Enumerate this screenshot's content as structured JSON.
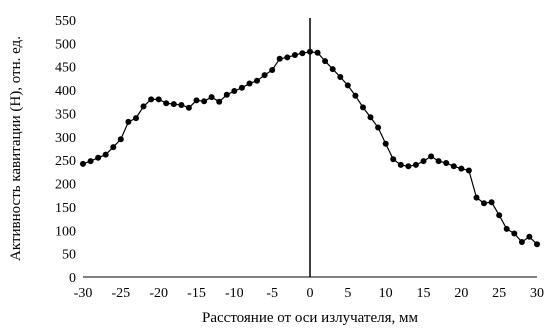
{
  "chart_data": {
    "type": "line",
    "title": "",
    "xlabel": "Расстояние от оси излучателя, мм",
    "ylabel": "Активность кавитации (H), отн. ед.",
    "xlim": [
      -30,
      30
    ],
    "ylim": [
      0,
      550
    ],
    "xticks": [
      "-30",
      "-25",
      "-20",
      "-15",
      "-10",
      "-5",
      "0",
      "5",
      "10",
      "15",
      "20",
      "25",
      "30"
    ],
    "yticks": [
      "0",
      "50",
      "100",
      "150",
      "200",
      "250",
      "300",
      "350",
      "400",
      "450",
      "500",
      "550"
    ],
    "grid": false,
    "legend": false,
    "reference_line_x": 0,
    "series": [
      {
        "color": "#000000",
        "marker": "circle",
        "x": [
          -30,
          -29,
          -28,
          -27,
          -26,
          -25,
          -24,
          -23,
          -22,
          -21,
          -20,
          -19,
          -18,
          -17,
          -16,
          -15,
          -14,
          -13,
          -12,
          -11,
          -10,
          -9,
          -8,
          -7,
          -6,
          -5,
          -4,
          -3,
          -2,
          -1,
          0,
          1,
          2,
          3,
          4,
          5,
          6,
          7,
          8,
          9,
          10,
          11,
          12,
          13,
          14,
          15,
          16,
          17,
          18,
          19,
          20,
          21,
          22,
          23,
          24,
          25,
          26,
          27,
          28,
          29,
          30
        ],
        "y": [
          242,
          248,
          255,
          262,
          278,
          295,
          332,
          340,
          365,
          380,
          380,
          372,
          370,
          368,
          362,
          378,
          376,
          385,
          375,
          390,
          398,
          405,
          414,
          420,
          432,
          443,
          467,
          470,
          475,
          479,
          482,
          480,
          462,
          445,
          428,
          410,
          388,
          363,
          342,
          320,
          285,
          252,
          240,
          237,
          240,
          248,
          258,
          248,
          244,
          237,
          232,
          228,
          170,
          158,
          160,
          132,
          103,
          93,
          75,
          86,
          70
        ]
      }
    ]
  }
}
